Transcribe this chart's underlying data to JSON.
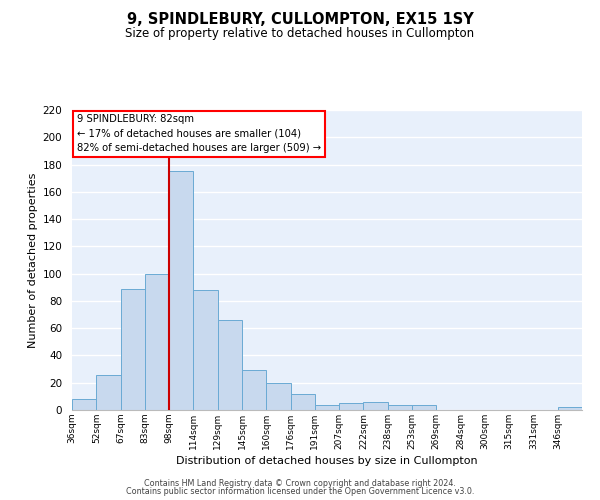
{
  "title": "9, SPINDLEBURY, CULLOMPTON, EX15 1SY",
  "subtitle": "Size of property relative to detached houses in Cullompton",
  "xlabel": "Distribution of detached houses by size in Cullompton",
  "ylabel": "Number of detached properties",
  "bar_color": "#c8d9ee",
  "bar_edge_color": "#6aaad4",
  "background_color": "#e8f0fb",
  "grid_color": "#ffffff",
  "categories": [
    "36sqm",
    "52sqm",
    "67sqm",
    "83sqm",
    "98sqm",
    "114sqm",
    "129sqm",
    "145sqm",
    "160sqm",
    "176sqm",
    "191sqm",
    "207sqm",
    "222sqm",
    "238sqm",
    "253sqm",
    "269sqm",
    "284sqm",
    "300sqm",
    "315sqm",
    "331sqm",
    "346sqm"
  ],
  "values": [
    8,
    26,
    89,
    100,
    175,
    88,
    66,
    29,
    20,
    12,
    4,
    5,
    6,
    4,
    4,
    0,
    0,
    0,
    0,
    0,
    2
  ],
  "vline_color": "#cc0000",
  "vline_pos": 4,
  "ylim": [
    0,
    220
  ],
  "yticks": [
    0,
    20,
    40,
    60,
    80,
    100,
    120,
    140,
    160,
    180,
    200,
    220
  ],
  "annotation_title": "9 SPINDLEBURY: 82sqm",
  "annotation_line1": "← 17% of detached houses are smaller (104)",
  "annotation_line2": "82% of semi-detached houses are larger (509) →",
  "footer1": "Contains HM Land Registry data © Crown copyright and database right 2024.",
  "footer2": "Contains public sector information licensed under the Open Government Licence v3.0."
}
